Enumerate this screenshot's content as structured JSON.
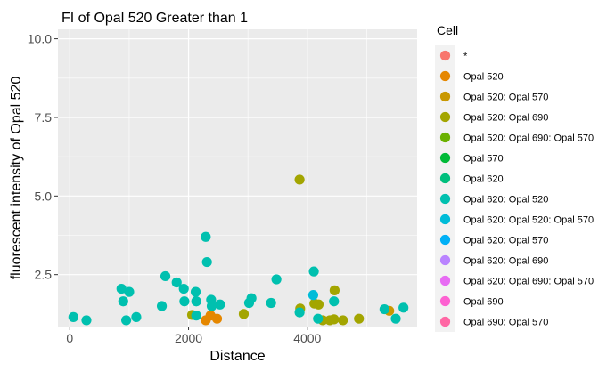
{
  "chart_data": {
    "type": "scatter",
    "title": "FI of Opal 520 Greater than 1",
    "xlabel": "Distance",
    "ylabel": "fluorescent intensity of Opal 520",
    "xlim": [
      -200,
      5850
    ],
    "ylim": [
      0.85,
      10.3
    ],
    "xticks": [
      0,
      2000,
      4000
    ],
    "xtick_labels": [
      "0",
      "2000",
      "4000"
    ],
    "yticks": [
      2.5,
      5.0,
      7.5,
      10.0
    ],
    "ytick_labels": [
      "2.5",
      "5.0",
      "7.5",
      "10.0"
    ],
    "grid": true,
    "legend": {
      "title": "Cell",
      "placement": "right",
      "entries": [
        {
          "label": "*",
          "color": "#F8766D"
        },
        {
          "label": "Opal 520",
          "color": "#E58700"
        },
        {
          "label": "Opal 520: Opal 570",
          "color": "#C99800"
        },
        {
          "label": "Opal 520: Opal 690",
          "color": "#A3A500"
        },
        {
          "label": "Opal 520: Opal 690: Opal 570",
          "color": "#6BB100"
        },
        {
          "label": "Opal 570",
          "color": "#00BA38"
        },
        {
          "label": "Opal 620",
          "color": "#00BF7D"
        },
        {
          "label": "Opal 620: Opal 520",
          "color": "#00C0AF"
        },
        {
          "label": "Opal 620: Opal 520: Opal 570",
          "color": "#00BCD8"
        },
        {
          "label": "Opal 620: Opal 570",
          "color": "#00B0F6"
        },
        {
          "label": "Opal 620: Opal 690",
          "color": "#B983FF"
        },
        {
          "label": "Opal 620: Opal 690: Opal 570",
          "color": "#E76BF3"
        },
        {
          "label": "Opal 690",
          "color": "#FD61D1"
        },
        {
          "label": "Opal 690: Opal 570",
          "color": "#FF67A4"
        }
      ]
    },
    "series": [
      {
        "name": "Opal 520",
        "color": "#E58700",
        "points": [
          [
            2290,
            1.05
          ],
          [
            2480,
            1.1
          ],
          [
            2370,
            1.2
          ]
        ]
      },
      {
        "name": "Opal 520: Opal 570",
        "color": "#C99800",
        "points": [
          [
            5380,
            1.35
          ]
        ]
      },
      {
        "name": "Opal 520: Opal 690",
        "color": "#A3A500",
        "points": [
          [
            3870,
            5.52
          ],
          [
            2060,
            1.22
          ],
          [
            2930,
            1.25
          ],
          [
            3880,
            1.42
          ],
          [
            4120,
            1.58
          ],
          [
            4190,
            1.55
          ],
          [
            4460,
            2.0
          ],
          [
            4260,
            1.05
          ],
          [
            4380,
            1.05
          ],
          [
            4450,
            1.08
          ],
          [
            4600,
            1.05
          ],
          [
            4870,
            1.1
          ]
        ]
      },
      {
        "name": "Opal 620: Opal 520",
        "color": "#00C0AF",
        "points": [
          [
            60,
            1.15
          ],
          [
            280,
            1.05
          ],
          [
            870,
            2.05
          ],
          [
            900,
            1.65
          ],
          [
            950,
            1.05
          ],
          [
            1000,
            1.95
          ],
          [
            1120,
            1.15
          ],
          [
            1550,
            1.5
          ],
          [
            1610,
            2.45
          ],
          [
            1800,
            2.25
          ],
          [
            1920,
            2.05
          ],
          [
            1930,
            1.65
          ],
          [
            2120,
            1.95
          ],
          [
            2130,
            1.65
          ],
          [
            2130,
            1.2
          ],
          [
            2290,
            3.7
          ],
          [
            2310,
            2.9
          ],
          [
            2380,
            1.7
          ],
          [
            2390,
            1.5
          ],
          [
            2530,
            1.55
          ],
          [
            3020,
            1.6
          ],
          [
            3060,
            1.75
          ],
          [
            3390,
            1.6
          ],
          [
            3480,
            2.35
          ],
          [
            3870,
            1.3
          ],
          [
            4110,
            2.6
          ],
          [
            4180,
            1.1
          ],
          [
            4450,
            1.65
          ],
          [
            5300,
            1.4
          ],
          [
            5490,
            1.1
          ],
          [
            5620,
            1.45
          ]
        ]
      },
      {
        "name": "Opal 620: Opal 520: Opal 570",
        "color": "#00BCD8",
        "points": [
          [
            4100,
            1.85
          ]
        ]
      }
    ]
  }
}
